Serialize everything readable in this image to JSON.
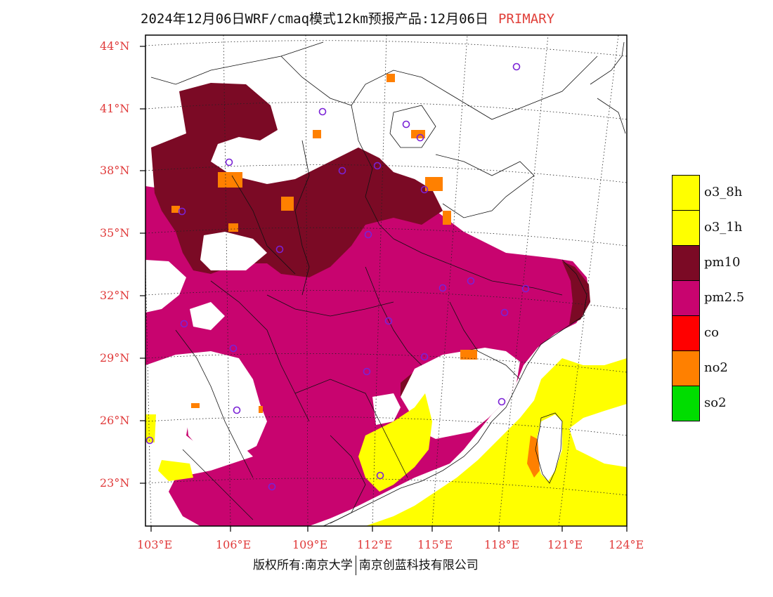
{
  "title": {
    "text": "2024年12月06日WRF/cmaq模式12km预报产品:12月06日",
    "tag": "PRIMARY"
  },
  "axes": {
    "lat_labels": [
      "44°N",
      "41°N",
      "38°N",
      "35°N",
      "32°N",
      "29°N",
      "26°N",
      "23°N"
    ],
    "lon_labels": [
      "103°E",
      "106°E",
      "109°E",
      "112°E",
      "115°E",
      "118°E",
      "121°E",
      "124°E"
    ]
  },
  "legend": {
    "items": [
      {
        "label": "o3_8h",
        "color": "#ffff00"
      },
      {
        "label": "o3_1h",
        "color": "#ffff00"
      },
      {
        "label": "pm10",
        "color": "#7b0a25"
      },
      {
        "label": "pm2.5",
        "color": "#c8046f"
      },
      {
        "label": "co",
        "color": "#ff0000"
      },
      {
        "label": "no2",
        "color": "#ff8000"
      },
      {
        "label": "so2",
        "color": "#00dd00"
      }
    ]
  },
  "copyright": {
    "left": "版权所有:南京大学",
    "right": "南京创蓝科技有限公司"
  },
  "colors": {
    "pm25": "#c8046f",
    "pm10": "#7b0a25",
    "o3": "#ffff00",
    "no2": "#ff8000",
    "city_marker": "#7a22d6",
    "axis_label": "#e03a3a"
  }
}
